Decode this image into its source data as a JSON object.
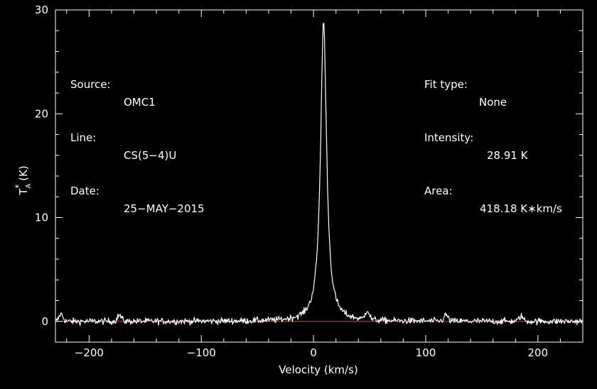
{
  "chart_data": {
    "type": "line",
    "xlabel": "Velocity (km/s)",
    "ylabel_main": "T",
    "ylabel_sup": "*",
    "ylabel_sub": "A",
    "ylabel_unit": " (K)",
    "xlim": [
      -230,
      240
    ],
    "ylim": [
      -2,
      30
    ],
    "x_ticks": [
      -200,
      -100,
      0,
      100,
      200
    ],
    "x_tick_labels": [
      "−200",
      "−100",
      "0",
      "100",
      "200"
    ],
    "y_ticks": [
      0,
      10,
      20,
      30
    ],
    "y_tick_labels": [
      "0",
      "10",
      "20",
      "30"
    ],
    "baseline": 0,
    "peak": {
      "x": 9,
      "y": 28.91
    },
    "line_width": 1.6,
    "hwhm": 3.2,
    "secondary_features": [
      {
        "x": 48,
        "y": 0.9
      },
      {
        "x": 118,
        "y": 0.6
      },
      {
        "x": -173,
        "y": 0.6
      },
      {
        "x": 185,
        "y": 0.5
      },
      {
        "x": -225,
        "y": 0.7
      }
    ],
    "noise_rms": 0.22,
    "colors": {
      "background": "#000000",
      "axes": "#ffffff",
      "spectrum": "#ffffff",
      "baseline": "#c0302a"
    }
  },
  "header": {
    "source_label": "Source:",
    "source_value": "OMC1",
    "line_label": "Line:",
    "line_value": "CS(5−4)U",
    "date_label": "Date:",
    "date_value": "25−MAY−2015",
    "fit_label": "Fit type:",
    "fit_value": "None",
    "intensity_label": "Intensity:",
    "intensity_value": "28.91 K",
    "area_label": "Area:",
    "area_value": "418.18 K∗km/s"
  }
}
